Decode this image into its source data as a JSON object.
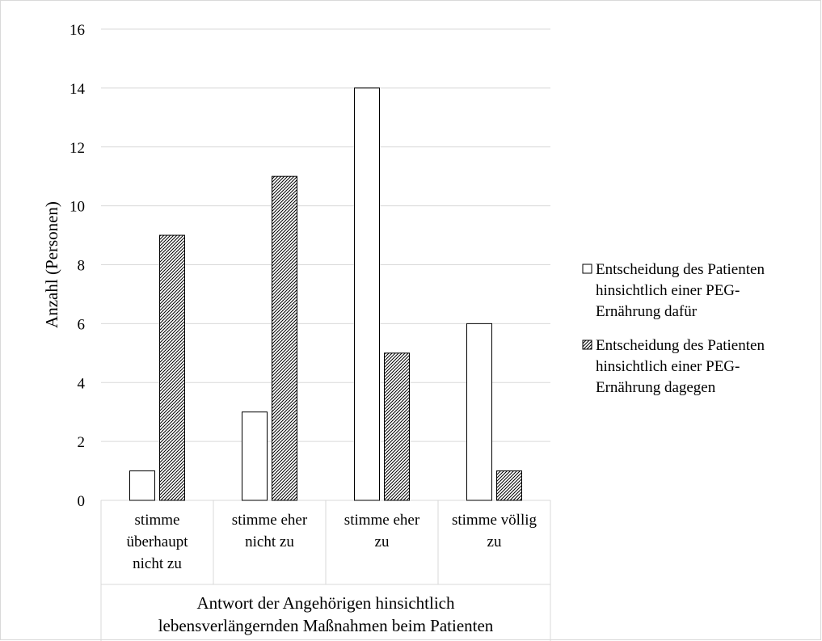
{
  "chart_data": {
    "type": "bar",
    "categories": [
      [
        "stimme",
        "überhaupt",
        "nicht zu"
      ],
      [
        "stimme eher",
        "nicht zu"
      ],
      [
        "stimme eher",
        "zu"
      ],
      [
        "stimme völlig",
        "zu"
      ]
    ],
    "series": [
      {
        "name": [
          "Entscheidung des Patienten",
          "hinsichtlich einer PEG-",
          "Ernährung dafür"
        ],
        "values": [
          1,
          3,
          14,
          6
        ],
        "fill": "white"
      },
      {
        "name": [
          "Entscheidung des Patienten",
          "hinsichtlich einer PEG-",
          "Ernährung dagegen"
        ],
        "values": [
          9,
          11,
          5,
          1
        ],
        "fill": "hatched"
      }
    ],
    "ylabel": "Anzahl (Personen)",
    "xlabel": [
      "Antwort der Angehörigen hinsichtlich",
      "lebensverlängernden Maßnahmen beim Patienten"
    ],
    "ylim": [
      0,
      16
    ],
    "yticks": [
      0,
      2,
      4,
      6,
      8,
      10,
      12,
      14,
      16
    ],
    "grid": true,
    "legend_position": "right",
    "colors": {
      "grid": "#d9d9d9",
      "bar_stroke": "#000000",
      "frame": "#d9d9d9"
    }
  }
}
